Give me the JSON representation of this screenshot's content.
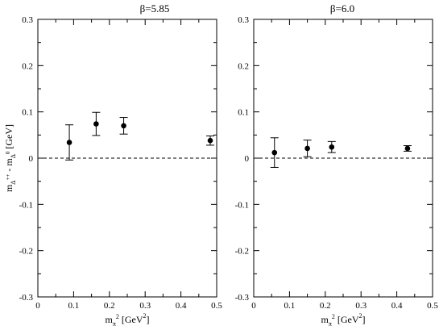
{
  "chart_data": [
    {
      "type": "scatter",
      "title": "β=5.85",
      "xlabel": "m_π^2 [GeV^2]",
      "ylabel": "m_Δ++ - m_Δ0 [GeV]",
      "xlim": [
        0,
        0.5
      ],
      "ylim": [
        -0.3,
        0.3
      ],
      "x_ticks": [
        "0",
        "0.1",
        "0.2",
        "0.3",
        "0.4",
        "0.5"
      ],
      "y_ticks": [
        "-0.3",
        "-0.2",
        "-0.1",
        "0",
        "0.1",
        "0.2",
        "0.3"
      ],
      "reference_line_y": 0,
      "points": [
        {
          "x": 0.088,
          "y": 0.034,
          "err_lo": 0.038,
          "err_hi": 0.038
        },
        {
          "x": 0.163,
          "y": 0.074,
          "err_lo": 0.025,
          "err_hi": 0.025
        },
        {
          "x": 0.24,
          "y": 0.07,
          "err_lo": 0.018,
          "err_hi": 0.018
        },
        {
          "x": 0.482,
          "y": 0.038,
          "err_lo": 0.01,
          "err_hi": 0.01
        }
      ]
    },
    {
      "type": "scatter",
      "title": "β=6.0",
      "xlabel": "m_π^2 [GeV^2]",
      "ylabel": "",
      "xlim": [
        0,
        0.5
      ],
      "ylim": [
        -0.3,
        0.3
      ],
      "x_ticks": [
        "0",
        "0.1",
        "0.2",
        "0.3",
        "0.4",
        "0.5"
      ],
      "y_ticks": [
        "-0.3",
        "-0.2",
        "-0.1",
        "0",
        "0.1",
        "0.2",
        "0.3"
      ],
      "reference_line_y": 0,
      "points": [
        {
          "x": 0.058,
          "y": 0.012,
          "err_lo": 0.032,
          "err_hi": 0.032
        },
        {
          "x": 0.15,
          "y": 0.021,
          "err_lo": 0.018,
          "err_hi": 0.018
        },
        {
          "x": 0.218,
          "y": 0.024,
          "err_lo": 0.012,
          "err_hi": 0.012
        },
        {
          "x": 0.43,
          "y": 0.021,
          "err_lo": 0.006,
          "err_hi": 0.006
        }
      ]
    }
  ]
}
